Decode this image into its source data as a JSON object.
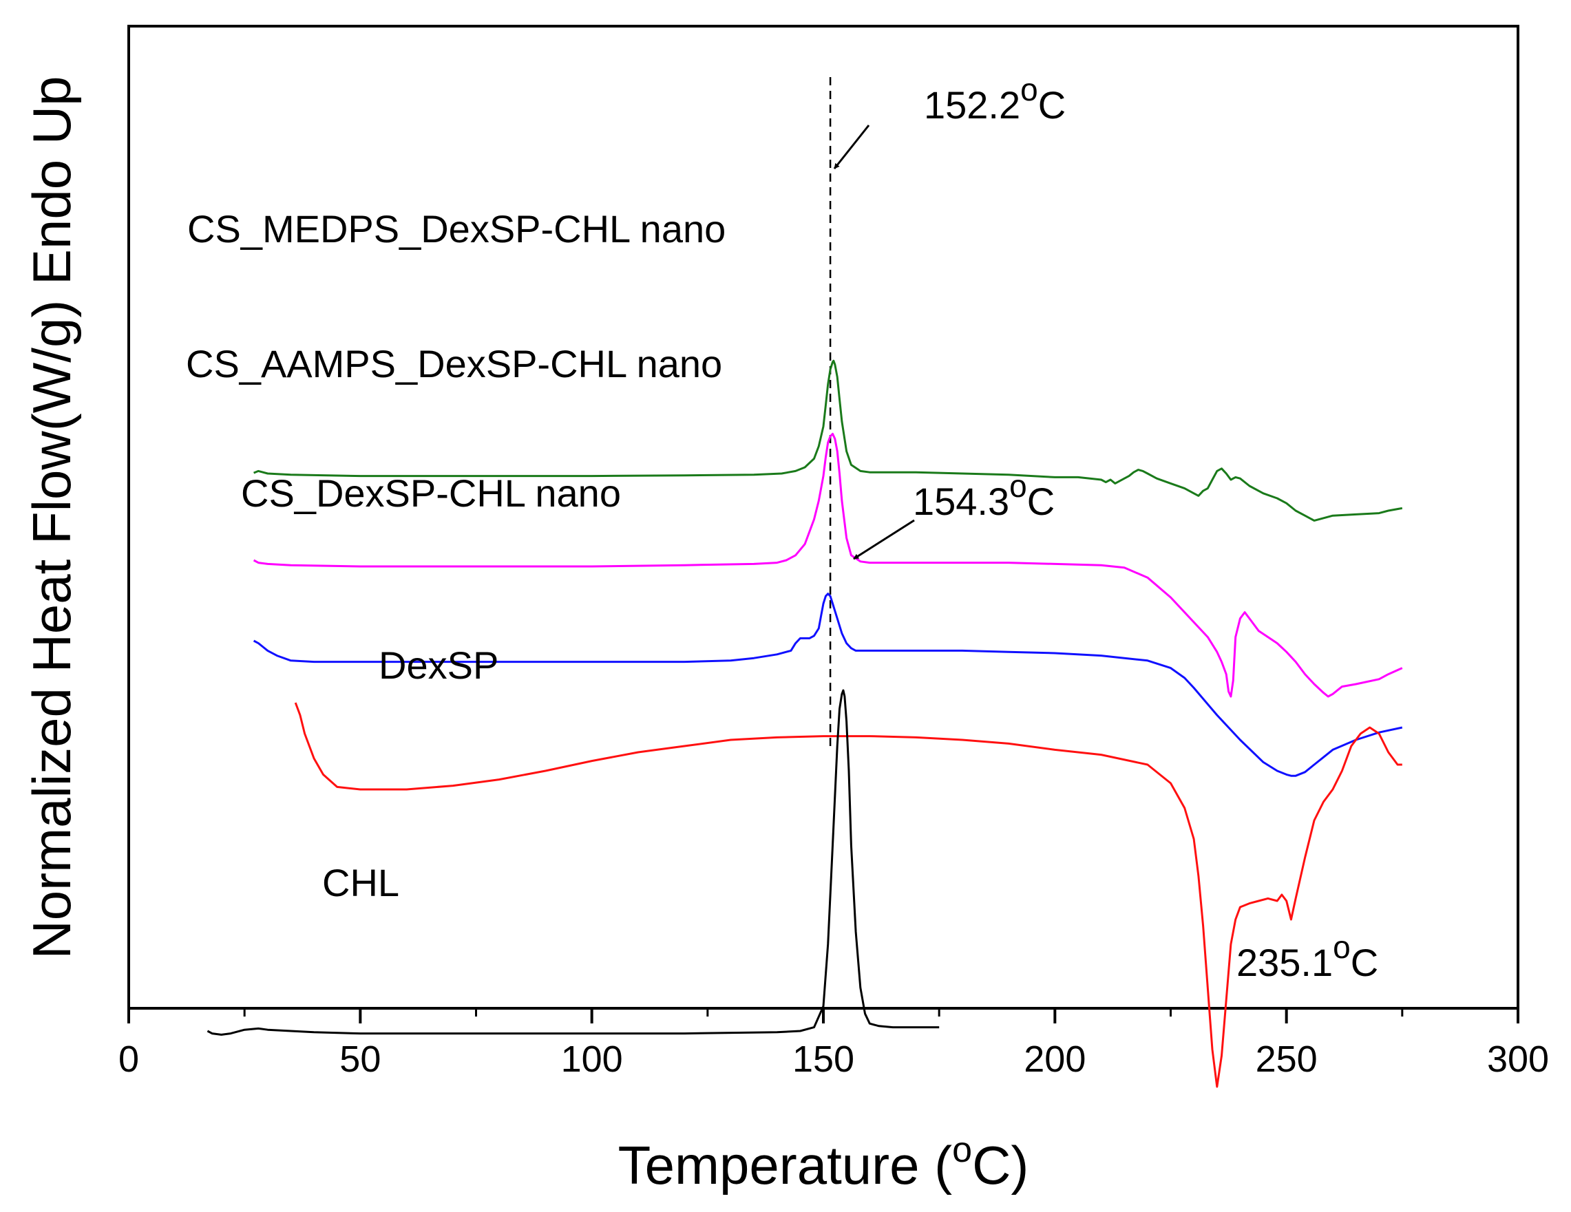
{
  "chart_data": {
    "type": "line",
    "title": "",
    "xlabel": "Temperature (°C)",
    "xlabel_parts": [
      "Temperature (",
      "o",
      "C)"
    ],
    "ylabel": "Normalized Heat Flow(W/g) Endo Up",
    "xlim": [
      0,
      300
    ],
    "xticks": [
      0,
      50,
      100,
      150,
      200,
      250,
      300
    ],
    "grid": false,
    "legend": "none (series labeled directly)",
    "series": [
      {
        "name": "CS_MEDPS_DexSP-CHL nano",
        "color": "#1a7a1a",
        "offset": 0.8,
        "x": [
          27,
          28,
          30,
          35,
          50,
          70,
          100,
          120,
          135,
          141,
          144,
          146,
          148,
          149,
          150,
          150.5,
          151,
          151.5,
          152,
          152.2,
          152.5,
          153,
          153.5,
          154,
          155,
          156,
          158,
          160,
          170,
          180,
          190,
          200,
          205,
          210,
          211,
          212,
          213,
          214,
          215,
          216,
          217,
          218,
          219,
          220,
          222,
          225,
          228,
          230,
          231,
          232,
          233,
          234,
          235,
          236,
          237,
          238,
          239,
          240,
          242,
          245,
          248,
          250,
          252,
          254,
          256,
          258,
          260,
          265,
          270,
          272,
          275
        ],
        "y": [
          0.005,
          0.02,
          0,
          -0.01,
          -0.02,
          -0.02,
          -0.02,
          -0.015,
          -0.01,
          0,
          0.02,
          0.05,
          0.12,
          0.22,
          0.38,
          0.55,
          0.72,
          0.84,
          0.9,
          0.91,
          0.88,
          0.78,
          0.6,
          0.42,
          0.18,
          0.07,
          0.02,
          0.01,
          0.01,
          0,
          -0.01,
          -0.03,
          -0.03,
          -0.05,
          -0.07,
          -0.05,
          -0.08,
          -0.06,
          -0.04,
          -0.02,
          0.01,
          0.03,
          0.02,
          0,
          -0.04,
          -0.08,
          -0.12,
          -0.16,
          -0.18,
          -0.14,
          -0.12,
          -0.05,
          0.02,
          0.04,
          0,
          -0.05,
          -0.03,
          -0.04,
          -0.1,
          -0.16,
          -0.2,
          -0.24,
          -0.3,
          -0.34,
          -0.38,
          -0.36,
          -0.34,
          -0.33,
          -0.32,
          -0.3,
          -0.28
        ]
      },
      {
        "name": "CS_AAMPS_DexSP-CHL nano",
        "color": "#ff00ff",
        "offset": 0.08,
        "x": [
          27,
          28,
          30,
          35,
          50,
          70,
          100,
          120,
          135,
          140,
          142,
          144,
          146,
          148,
          149,
          150,
          150.5,
          151,
          151.5,
          152,
          152.5,
          153,
          153.5,
          154,
          155,
          156,
          158,
          160,
          170,
          180,
          190,
          200,
          210,
          215,
          220,
          225,
          230,
          233,
          235,
          236,
          237,
          237.5,
          238,
          238.5,
          239,
          240,
          241,
          242,
          244,
          246,
          248,
          250,
          252,
          254,
          256,
          258,
          259,
          260,
          262,
          265,
          270,
          272,
          275
        ],
        "y": [
          0.02,
          0,
          -0.01,
          -0.02,
          -0.03,
          -0.03,
          -0.03,
          -0.02,
          -0.01,
          0,
          0.02,
          0.06,
          0.15,
          0.35,
          0.5,
          0.7,
          0.85,
          0.97,
          1.02,
          1.04,
          1.0,
          0.9,
          0.72,
          0.5,
          0.2,
          0.06,
          0.01,
          0,
          0,
          0,
          0,
          -0.01,
          -0.02,
          -0.04,
          -0.12,
          -0.28,
          -0.48,
          -0.6,
          -0.72,
          -0.8,
          -0.9,
          -1.04,
          -1.08,
          -0.95,
          -0.6,
          -0.45,
          -0.4,
          -0.45,
          -0.55,
          -0.6,
          -0.65,
          -0.72,
          -0.8,
          -0.9,
          -0.98,
          -1.05,
          -1.08,
          -1.06,
          -1.0,
          -0.98,
          -0.94,
          -0.9,
          -0.85
        ]
      },
      {
        "name": "CS_DexSP-CHL nano",
        "color": "#1010ff",
        "offset": -0.65,
        "x": [
          27,
          28,
          29,
          30,
          32,
          35,
          40,
          50,
          70,
          100,
          120,
          130,
          135,
          140,
          143,
          144,
          145,
          146,
          147,
          148,
          149,
          149.5,
          150,
          150.5,
          151,
          151.5,
          152,
          153,
          154,
          155,
          156,
          157,
          158,
          160,
          170,
          180,
          190,
          200,
          210,
          215,
          220,
          225,
          228,
          230,
          235,
          240,
          245,
          248,
          250,
          251,
          252,
          254,
          256,
          258,
          260,
          265,
          270,
          275
        ],
        "y": [
          0.1,
          0.08,
          0.05,
          0.02,
          -0.02,
          -0.06,
          -0.07,
          -0.07,
          -0.07,
          -0.07,
          -0.07,
          -0.06,
          -0.04,
          -0.01,
          0.02,
          0.08,
          0.12,
          0.12,
          0.12,
          0.14,
          0.2,
          0.3,
          0.4,
          0.46,
          0.48,
          0.46,
          0.4,
          0.28,
          0.16,
          0.08,
          0.04,
          0.02,
          0.02,
          0.02,
          0.02,
          0.02,
          0.01,
          0,
          -0.02,
          -0.04,
          -0.06,
          -0.12,
          -0.2,
          -0.28,
          -0.5,
          -0.7,
          -0.88,
          -0.95,
          -0.98,
          -0.99,
          -0.99,
          -0.96,
          -0.9,
          -0.84,
          -0.78,
          -0.7,
          -0.64,
          -0.6
        ]
      },
      {
        "name": "DexSP",
        "color": "#ff1010",
        "offset": -1.85,
        "x": [
          36,
          37,
          38,
          40,
          42,
          45,
          50,
          60,
          70,
          80,
          90,
          100,
          110,
          120,
          130,
          140,
          150,
          160,
          170,
          180,
          190,
          200,
          210,
          220,
          225,
          228,
          230,
          231,
          232,
          233,
          234,
          235,
          236,
          237,
          238,
          239,
          240,
          242,
          244,
          246,
          248,
          249,
          250,
          251,
          252,
          254,
          256,
          258,
          260,
          262,
          264,
          266,
          268,
          270,
          272,
          274,
          275
        ],
        "y": [
          0.8,
          0.7,
          0.55,
          0.35,
          0.22,
          0.12,
          0.1,
          0.1,
          0.13,
          0.18,
          0.25,
          0.33,
          0.4,
          0.45,
          0.5,
          0.52,
          0.53,
          0.53,
          0.52,
          0.5,
          0.47,
          0.42,
          0.38,
          0.3,
          0.15,
          -0.05,
          -0.3,
          -0.6,
          -1.0,
          -1.5,
          -2.0,
          -2.3,
          -2.05,
          -1.6,
          -1.15,
          -0.95,
          -0.85,
          -0.82,
          -0.8,
          -0.78,
          -0.8,
          -0.75,
          -0.8,
          -0.95,
          -0.78,
          -0.45,
          -0.15,
          0.0,
          0.1,
          0.25,
          0.45,
          0.55,
          0.6,
          0.55,
          0.4,
          0.3,
          0.3
        ]
      },
      {
        "name": "CHL",
        "color": "#000000",
        "offset": -3.7,
        "x": [
          17,
          18,
          20,
          22,
          25,
          28,
          30,
          35,
          40,
          50,
          70,
          100,
          120,
          140,
          145,
          148,
          150,
          151,
          152,
          153,
          153.5,
          154,
          154.3,
          154.6,
          155,
          155.5,
          156,
          157,
          158,
          159,
          160,
          162,
          165,
          170,
          175
        ],
        "y": [
          0,
          -0.02,
          -0.03,
          -0.02,
          0.01,
          0.02,
          0.01,
          0,
          -0.01,
          -0.02,
          -0.02,
          -0.02,
          -0.02,
          -0.01,
          0,
          0.03,
          0.2,
          0.7,
          1.5,
          2.3,
          2.6,
          2.72,
          2.75,
          2.7,
          2.5,
          2.1,
          1.5,
          0.8,
          0.35,
          0.14,
          0.06,
          0.04,
          0.03,
          0.03,
          0.03
        ]
      }
    ],
    "annotations": {
      "label_152": [
        "152.2",
        "o",
        "C"
      ],
      "label_154": [
        "154.3",
        "o",
        "C"
      ],
      "label_235": [
        "235.1",
        "o",
        "C"
      ],
      "vline_x": 151.5
    }
  }
}
